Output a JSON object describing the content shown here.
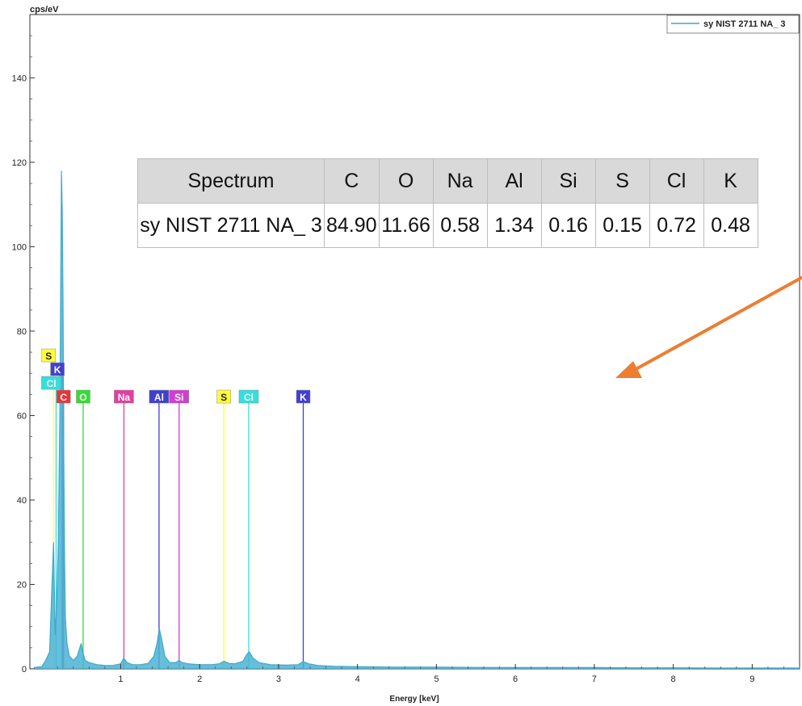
{
  "chart_data": {
    "type": "line",
    "ylabel": "cps/eV",
    "xlabel": "Energy [keV]",
    "xlim": [
      -0.15,
      9.6
    ],
    "ylim": [
      0,
      155
    ],
    "x_ticks": [
      1,
      2,
      3,
      4,
      5,
      6,
      7,
      8,
      9
    ],
    "y_ticks": [
      0,
      20,
      40,
      60,
      80,
      100,
      120,
      140
    ],
    "legend": {
      "placement": "top-right",
      "entries": [
        "sy NIST 2711 NA_ 3"
      ]
    },
    "series": [
      {
        "name": "sy NIST 2711 NA_ 3",
        "color": "#3fa9c9",
        "x": [
          -0.1,
          0.0,
          0.05,
          0.1,
          0.13,
          0.15,
          0.17,
          0.19,
          0.21,
          0.23,
          0.25,
          0.26,
          0.27,
          0.28,
          0.29,
          0.3,
          0.32,
          0.35,
          0.4,
          0.45,
          0.5,
          0.52,
          0.55,
          0.6,
          0.7,
          0.8,
          0.9,
          1.0,
          1.04,
          1.08,
          1.15,
          1.25,
          1.35,
          1.42,
          1.46,
          1.49,
          1.52,
          1.56,
          1.62,
          1.7,
          1.74,
          1.78,
          1.85,
          2.0,
          2.15,
          2.25,
          2.31,
          2.37,
          2.45,
          2.55,
          2.6,
          2.63,
          2.68,
          2.75,
          2.9,
          3.1,
          3.25,
          3.31,
          3.38,
          3.5,
          3.7,
          4.0,
          4.5,
          5.0,
          5.5,
          6.0,
          6.5,
          7.0,
          7.5,
          8.0,
          8.5,
          9.0,
          9.6
        ],
        "y": [
          0.3,
          0.5,
          2,
          4,
          20,
          30,
          8,
          15,
          30,
          60,
          118,
          108,
          85,
          50,
          25,
          12,
          6,
          3,
          2,
          3,
          6,
          4,
          2,
          1.5,
          1,
          0.8,
          0.8,
          1.2,
          2.5,
          1.5,
          1,
          1,
          1.3,
          3,
          6,
          9.5,
          7,
          3,
          1.5,
          1.5,
          2,
          1.5,
          1.2,
          1,
          1,
          1.2,
          1.8,
          1.3,
          1.2,
          1.8,
          3.5,
          4,
          2.5,
          1.5,
          1,
          0.9,
          1,
          1.7,
          1.2,
          0.8,
          0.6,
          0.5,
          0.4,
          0.4,
          0.35,
          0.3,
          0.3,
          0.3,
          0.25,
          0.25,
          0.2,
          0.2,
          0.2
        ]
      }
    ],
    "element_markers": [
      {
        "label": "C",
        "energy": 0.277,
        "row": 0,
        "color": "#e8353a",
        "text_color": "#ffffff"
      },
      {
        "label": "O",
        "energy": 0.525,
        "row": 0,
        "color": "#33dd33",
        "text_color": "#ffffff"
      },
      {
        "label": "Na",
        "energy": 1.041,
        "row": 0,
        "color": "#e040a0",
        "text_color": "#ffffff"
      },
      {
        "label": "Al",
        "energy": 1.486,
        "row": 0,
        "color": "#4040d0",
        "text_color": "#ffffff"
      },
      {
        "label": "Si",
        "energy": 1.74,
        "row": 0,
        "color": "#d040d0",
        "text_color": "#ffffff"
      },
      {
        "label": "S",
        "energy": 2.307,
        "row": 0,
        "color": "#ffff33",
        "text_color": "#222222"
      },
      {
        "label": "Cl",
        "energy": 2.622,
        "row": 0,
        "color": "#33e0e0",
        "text_color": "#ffffff"
      },
      {
        "label": "K",
        "energy": 3.313,
        "row": 0,
        "color": "#4040d0",
        "text_color": "#ffffff"
      },
      {
        "label": "Cl",
        "energy": 0.182,
        "row": 1,
        "color": "#33e0e0",
        "text_color": "#ffffff"
      },
      {
        "label": "K",
        "energy": 0.26,
        "row": 2,
        "color": "#4040d0",
        "text_color": "#ffffff"
      },
      {
        "label": "S",
        "energy": 0.149,
        "row": 3,
        "color": "#ffff33",
        "text_color": "#222222"
      }
    ]
  },
  "table": {
    "header": [
      "Spectrum",
      "C",
      "O",
      "Na",
      "Al",
      "Si",
      "S",
      "Cl",
      "K"
    ],
    "row": [
      "sy NIST 2711 NA_ 3",
      "84.90",
      "11.66",
      "0.58",
      "1.34",
      "0.16",
      "0.15",
      "0.72",
      "0.48"
    ]
  },
  "colors": {
    "arrow": "#ed7d31",
    "axis": "#333333"
  }
}
